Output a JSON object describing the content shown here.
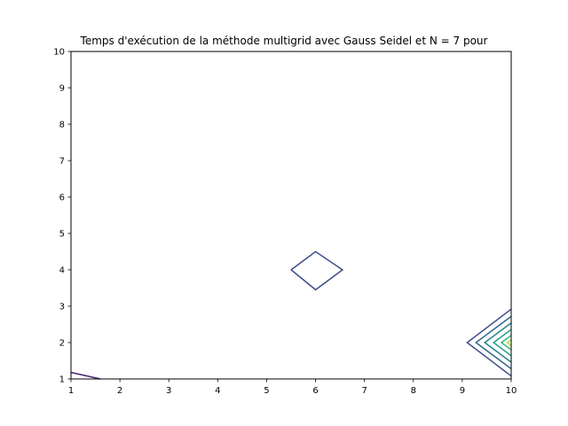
{
  "chart_data": {
    "type": "contour",
    "title": "Temps d'exécution de la méthode multigrid avec Gauss Seidel et N = 7 pour",
    "xlabel": "",
    "ylabel": "",
    "xlim": [
      1,
      10
    ],
    "ylim": [
      1,
      10
    ],
    "xticks": [
      1,
      2,
      3,
      4,
      5,
      6,
      7,
      8,
      9,
      10
    ],
    "yticks": [
      1,
      2,
      3,
      4,
      5,
      6,
      7,
      8,
      9,
      10
    ],
    "grid": false,
    "colormap": "viridis",
    "series": [
      {
        "color": "#482374",
        "points": [
          [
            1.0,
            1.18
          ],
          [
            1.6,
            1.0
          ]
        ]
      },
      {
        "color": "#3e4c8a",
        "points": [
          [
            5.5,
            4.0
          ],
          [
            6.0,
            4.5
          ],
          [
            6.55,
            4.0
          ],
          [
            6.0,
            3.45
          ],
          [
            5.5,
            4.0
          ]
        ]
      },
      {
        "color": "#3e4c8a",
        "points": [
          [
            10.0,
            2.92
          ],
          [
            9.1,
            2.0
          ],
          [
            10.0,
            1.08
          ]
        ]
      },
      {
        "color": "#30688e",
        "points": [
          [
            10.0,
            2.72
          ],
          [
            9.28,
            2.0
          ],
          [
            10.0,
            1.28
          ]
        ]
      },
      {
        "color": "#25838e",
        "points": [
          [
            10.0,
            2.54
          ],
          [
            9.46,
            2.0
          ],
          [
            10.0,
            1.46
          ]
        ]
      },
      {
        "color": "#1f9e89",
        "points": [
          [
            10.0,
            2.36
          ],
          [
            9.64,
            2.0
          ],
          [
            10.0,
            1.64
          ]
        ]
      },
      {
        "color": "#35b779",
        "points": [
          [
            10.0,
            2.2
          ],
          [
            9.8,
            2.0
          ],
          [
            10.0,
            1.8
          ]
        ]
      },
      {
        "color": "#b5de2b",
        "points": [
          [
            10.0,
            2.08
          ],
          [
            9.92,
            2.0
          ],
          [
            10.0,
            1.92
          ]
        ]
      }
    ]
  }
}
